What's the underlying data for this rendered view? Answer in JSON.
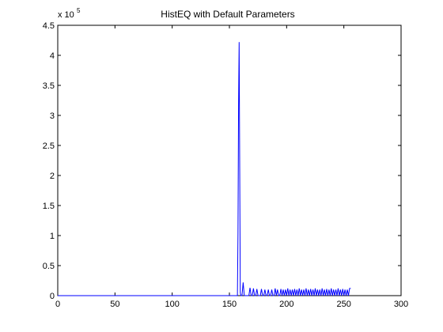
{
  "chart_data": {
    "type": "line",
    "title": "HistEQ with Default Parameters",
    "xlabel": "",
    "ylabel": "",
    "xlim": [
      0,
      300
    ],
    "ylim": [
      0,
      4.5
    ],
    "y_multiplier_base": "x 10",
    "y_multiplier_exponent": "5",
    "x_ticks": [
      "0",
      "50",
      "100",
      "150",
      "200",
      "250",
      "300"
    ],
    "y_ticks": [
      "0",
      "0.5",
      "1",
      "1.5",
      "2",
      "2.5",
      "3",
      "3.5",
      "4",
      "4.5"
    ],
    "grid": false,
    "line_color": "#0000ff",
    "series": [
      {
        "x": [
          0,
          157,
          157.5,
          158,
          158.5,
          159,
          159.5,
          160,
          161,
          162,
          163,
          164,
          165,
          166,
          167,
          168,
          169,
          170,
          171,
          172,
          173,
          174,
          175,
          176,
          177,
          178,
          179,
          180,
          181,
          182,
          183,
          184,
          185,
          186,
          187,
          188,
          189,
          190,
          191,
          192,
          193,
          194,
          195,
          196,
          197,
          198,
          199,
          200,
          201,
          202,
          203,
          204,
          205,
          206,
          207,
          208,
          209,
          210,
          211,
          212,
          213,
          214,
          215,
          216,
          217,
          218,
          219,
          220,
          221,
          222,
          223,
          224,
          225,
          226,
          227,
          228,
          229,
          230,
          231,
          232,
          233,
          234,
          235,
          236,
          237,
          238,
          239,
          240,
          241,
          242,
          243,
          244,
          245,
          246,
          247,
          248,
          249,
          250,
          251,
          252,
          253,
          254,
          255,
          256
        ],
        "values": [
          0,
          0,
          1.05,
          3.15,
          4.22,
          2.12,
          0.05,
          0,
          0,
          0.22,
          0,
          0,
          0,
          0,
          0,
          0.13,
          0,
          0,
          0.12,
          0,
          0,
          0.11,
          0,
          0,
          0,
          0.11,
          0,
          0,
          0.1,
          0,
          0,
          0.1,
          0,
          0,
          0.1,
          0,
          0,
          0.12,
          0,
          0.1,
          0,
          0,
          0.11,
          0,
          0.1,
          0,
          0.1,
          0,
          0.12,
          0,
          0.1,
          0,
          0.1,
          0,
          0.11,
          0,
          0.1,
          0,
          0.12,
          0,
          0.1,
          0,
          0.1,
          0,
          0.12,
          0,
          0.1,
          0,
          0.11,
          0,
          0.1,
          0,
          0.12,
          0,
          0.1,
          0,
          0.1,
          0,
          0.12,
          0,
          0.1,
          0,
          0.11,
          0,
          0.1,
          0,
          0.12,
          0,
          0.1,
          0,
          0.1,
          0,
          0.12,
          0,
          0.1,
          0,
          0.11,
          0,
          0.1,
          0,
          0.1,
          0,
          0.12,
          0.12
        ]
      }
    ]
  }
}
